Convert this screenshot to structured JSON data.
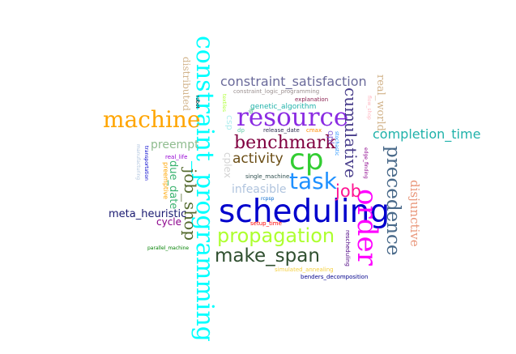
{
  "words": [
    {
      "key": "constraint_programming",
      "text": "constraint_programming",
      "color": "#00ffff"
    },
    {
      "key": "scheduling",
      "text": "scheduling",
      "color": "#0000cc"
    },
    {
      "key": "resource",
      "text": "resource",
      "color": "#8a2be2"
    },
    {
      "key": "machine",
      "text": "machine",
      "color": "#ffa500"
    },
    {
      "key": "order",
      "text": "order",
      "color": "#ff00ff"
    },
    {
      "key": "cp",
      "text": "cp",
      "color": "#32cd32"
    },
    {
      "key": "task",
      "text": "task",
      "color": "#1e90ff"
    },
    {
      "key": "propagation",
      "text": "propagation",
      "color": "#adff2f"
    },
    {
      "key": "make_span",
      "text": "make_span",
      "color": "#2f4f2f"
    },
    {
      "key": "precedence",
      "text": "precedence",
      "color": "#4a6a8a"
    },
    {
      "key": "benchmark",
      "text": "benchmark",
      "color": "#800040"
    },
    {
      "key": "job_shop",
      "text": "job_shop",
      "color": "#556b2f"
    },
    {
      "key": "job",
      "text": "job",
      "color": "#ff1493"
    },
    {
      "key": "cumulative",
      "text": "cumulative",
      "color": "#483d8b"
    },
    {
      "key": "constraint_satisfaction",
      "text": "constraint_satisfaction",
      "color": "#6a6a9a"
    },
    {
      "key": "completion_time",
      "text": "completion_time",
      "color": "#20b2aa"
    },
    {
      "key": "activity",
      "text": "activity",
      "color": "#6b4e16"
    },
    {
      "key": "disjunctive",
      "text": "disjunctive",
      "color": "#e9967a"
    },
    {
      "key": "preempt",
      "text": "preempt",
      "color": "#8fbc8f"
    },
    {
      "key": "meta_heuristic",
      "text": "meta_heuristic",
      "color": "#191970"
    },
    {
      "key": "infeasible",
      "text": "infeasible",
      "color": "#b0c4de"
    },
    {
      "key": "distributed",
      "text": "distributed",
      "color": "#d2b48c"
    },
    {
      "key": "real_world",
      "text": "real_world",
      "color": "#d2b48c"
    },
    {
      "key": "due_date",
      "text": "due_date",
      "color": "#3cb371"
    },
    {
      "key": "cycle",
      "text": "cycle",
      "color": "#8b008b"
    },
    {
      "key": "cplex",
      "text": "cplex",
      "color": "#d3d3d3"
    },
    {
      "key": "csp",
      "text": "csp",
      "color": "#afeeee"
    },
    {
      "key": "opl",
      "text": "opl",
      "color": "#9370db"
    },
    {
      "key": "genetic_algorithm",
      "text": "genetic_algorithm",
      "color": "#20b2aa"
    },
    {
      "key": "constraint_logic_programming",
      "text": "constraint_logic_programming",
      "color": "#9a8f8f"
    },
    {
      "key": "explanation",
      "text": "explanation",
      "color": "#8b2252"
    },
    {
      "key": "robot",
      "text": "robot",
      "color": "#000000"
    },
    {
      "key": "textiles",
      "text": "textiles",
      "color": "#adff2f"
    },
    {
      "key": "lp",
      "text": "lp",
      "color": "#3cb371"
    },
    {
      "key": "flow_shop",
      "text": "flow_shop",
      "color": "#ffb6c1"
    },
    {
      "key": "release_date",
      "text": "release_date",
      "color": "#2f2f4f"
    },
    {
      "key": "cmax",
      "text": "cmax",
      "color": "#ff8c00"
    },
    {
      "key": "dp",
      "text": "dp",
      "color": "#66cdaa"
    },
    {
      "key": "edge_finding",
      "text": "edge_finding",
      "color": "#8b008b"
    },
    {
      "key": "stochastic",
      "text": "stochastic",
      "color": "#1e90ff"
    },
    {
      "key": "transportation",
      "text": "transportation",
      "color": "#0000cd"
    },
    {
      "key": "manufacturing",
      "text": "manufacturing",
      "color": "#b0c4de"
    },
    {
      "key": "real_life",
      "text": "real_life",
      "color": "#9400d3"
    },
    {
      "key": "preemptive",
      "text": "preemptive",
      "color": "#ffa500"
    },
    {
      "key": "single_machine",
      "text": "single_machine",
      "color": "#2f4f4f"
    },
    {
      "key": "rcpsp",
      "text": "rcpsp",
      "color": "#0066cc"
    },
    {
      "key": "setup_time",
      "text": "setup_time",
      "color": "#ff0000"
    },
    {
      "key": "rescheduling",
      "text": "rescheduling",
      "color": "#4b0082"
    },
    {
      "key": "parallel_machine",
      "text": "parallel_machine",
      "color": "#008000"
    },
    {
      "key": "simulated_annealing",
      "text": "simulated_annealing",
      "color": "#f4d03f"
    },
    {
      "key": "benders_decomposition",
      "text": "benders_decomposition",
      "color": "#00008b"
    }
  ]
}
